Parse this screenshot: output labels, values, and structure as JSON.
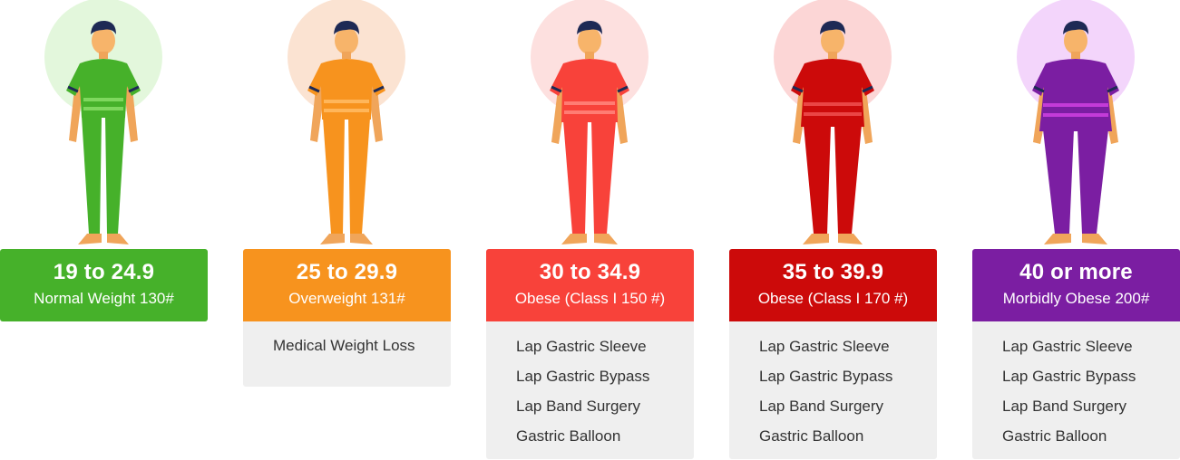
{
  "categories": [
    {
      "range": "19 to 24.9",
      "label": "Normal Weight 130#",
      "color": "#46b12a",
      "halo": "#e3f7dc",
      "treatments": []
    },
    {
      "range": "25 to 29.9",
      "label": "Overweight 131#",
      "color": "#f7931e",
      "halo": "#fbe3d2",
      "treatments": [
        "Medical Weight Loss"
      ]
    },
    {
      "range": "30 to 34.9",
      "label": "Obese (Class I 150 #)",
      "color": "#f8423a",
      "halo": "#fde0df",
      "treatments": [
        "Lap Gastric Sleeve",
        "Lap Gastric Bypass",
        "Lap Band Surgery",
        "Gastric Balloon"
      ]
    },
    {
      "range": "35 to 39.9",
      "label": "Obese (Class I 170 #)",
      "color": "#cc0a0a",
      "halo": "#fcd6d6",
      "treatments": [
        "Lap Gastric Sleeve",
        "Lap Gastric Bypass",
        "Lap Band Surgery",
        "Gastric Balloon"
      ]
    },
    {
      "range": "40 or more",
      "label": "Morbidly Obese 200#",
      "color": "#7b1ea2",
      "halo": "#f3d5fb",
      "treatments": [
        "Lap Gastric Sleeve",
        "Lap Gastric Bypass",
        "Lap Band Surgery",
        "Gastric Balloon"
      ]
    }
  ]
}
